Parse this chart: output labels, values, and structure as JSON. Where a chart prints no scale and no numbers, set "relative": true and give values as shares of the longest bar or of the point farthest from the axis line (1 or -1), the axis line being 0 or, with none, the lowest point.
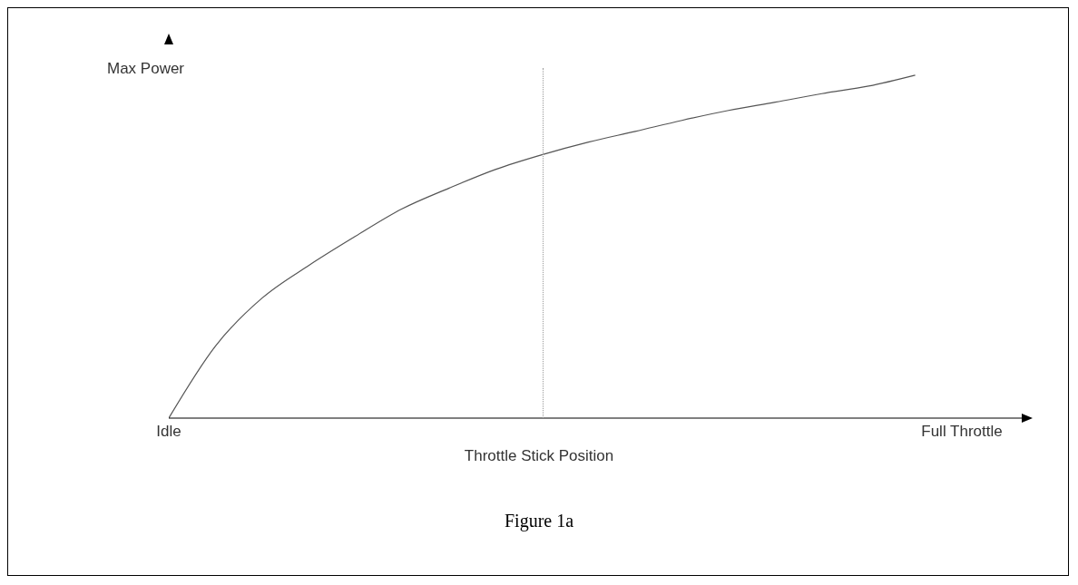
{
  "chart_data": {
    "type": "line",
    "relative": true,
    "ylabel": "Max Power",
    "xlabel": "Throttle Stick Position",
    "annotations": [
      "Figure 1a"
    ],
    "categories": [
      "Idle",
      null,
      null,
      null,
      null,
      null,
      null,
      null,
      null,
      null,
      null,
      null,
      null,
      null,
      null,
      null,
      null,
      "Full Throttle"
    ],
    "values": [
      0,
      0.21,
      0.35,
      0.445,
      0.53,
      0.61,
      0.67,
      0.725,
      0.768,
      0.805,
      0.836,
      0.868,
      0.897,
      0.921,
      0.946,
      0.968,
      1,
      null
    ],
    "color": "#555555",
    "marker": "none"
  }
}
